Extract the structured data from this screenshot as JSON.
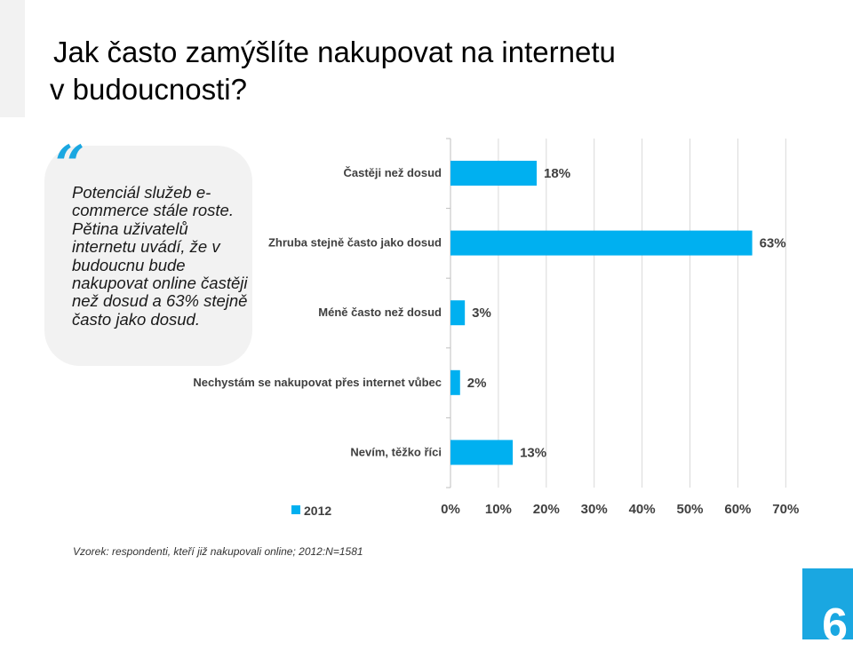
{
  "slide": {
    "title_line1": "Jak často zamýšlíte nakupovat na internetu",
    "title_line2": "v budoucnosti?",
    "quote_mark": "“",
    "quote_text": "Potenciál služeb e-commerce stále roste. Pětina uživatelů internetu uvádí, že v budoucnu bude nakupovat online častěji než dosud a 63% stejně často jako dosud.",
    "footnote": "Vzorek: respondenti, kteří již nakupovali online; 2012:N=1581",
    "page_number": "6",
    "accent_color": "#1aa7e1"
  },
  "chart_data": {
    "type": "bar",
    "orientation": "horizontal",
    "categories": [
      "Častěji než dosud",
      "Zhruba stejně často jako dosud",
      "Méně často než dosud",
      "Nechystám se nakupovat přes internet vůbec",
      "Nevím, těžko říci"
    ],
    "series": [
      {
        "name": "2012",
        "values": [
          18,
          63,
          3,
          2,
          13
        ],
        "color": "#00b0f0"
      }
    ],
    "value_labels": [
      "18%",
      "63%",
      "3%",
      "2%",
      "13%"
    ],
    "x_ticks": [
      0,
      10,
      20,
      30,
      40,
      50,
      60,
      70
    ],
    "x_tick_labels": [
      "0%",
      "10%",
      "20%",
      "30%",
      "40%",
      "50%",
      "60%",
      "70%"
    ],
    "xlim": [
      0,
      70
    ],
    "grid": "vertical",
    "legend": "bottom-left"
  }
}
